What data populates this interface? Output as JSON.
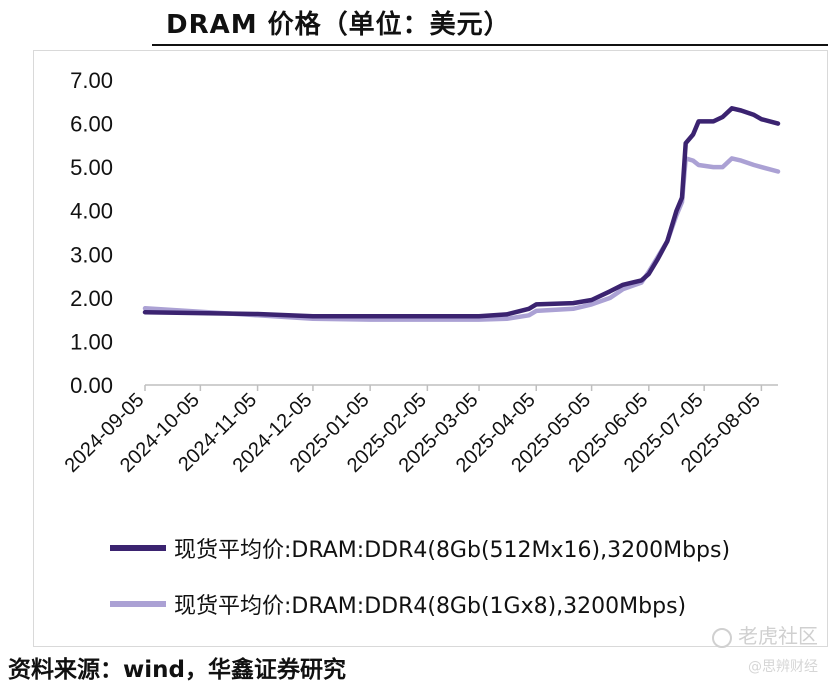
{
  "title": "DRAM 价格（单位：美元）",
  "source": "资料来源：wind，华鑫证券研究",
  "watermark": {
    "main": "老虎社区",
    "sub": "@思辨财经",
    "icon": "tiger-community-icon"
  },
  "chart_data": {
    "type": "line",
    "ylim": [
      0,
      7
    ],
    "yticks": [
      "0.00",
      "1.00",
      "2.00",
      "3.00",
      "4.00",
      "5.00",
      "6.00",
      "7.00"
    ],
    "xticks": [
      "2024-09-05",
      "2024-10-05",
      "2024-11-05",
      "2024-12-05",
      "2025-01-05",
      "2025-02-05",
      "2025-03-05",
      "2025-04-05",
      "2025-05-05",
      "2025-06-05",
      "2025-07-05",
      "2025-08-05"
    ],
    "grid": false,
    "legend_position": "bottom",
    "series": [
      {
        "name": "现货平均价:DRAM:DDR4(8Gb(512Mx16),3200Mbps)",
        "color": "#3b2370",
        "points": [
          [
            "2024-09-05",
            1.67
          ],
          [
            "2024-10-05",
            1.65
          ],
          [
            "2024-11-05",
            1.63
          ],
          [
            "2024-12-05",
            1.58
          ],
          [
            "2025-01-05",
            1.58
          ],
          [
            "2025-02-05",
            1.58
          ],
          [
            "2025-03-05",
            1.58
          ],
          [
            "2025-03-20",
            1.62
          ],
          [
            "2025-04-01",
            1.75
          ],
          [
            "2025-04-05",
            1.85
          ],
          [
            "2025-04-25",
            1.88
          ],
          [
            "2025-05-05",
            1.95
          ],
          [
            "2025-05-15",
            2.15
          ],
          [
            "2025-05-22",
            2.3
          ],
          [
            "2025-06-01",
            2.4
          ],
          [
            "2025-06-05",
            2.55
          ],
          [
            "2025-06-10",
            2.9
          ],
          [
            "2025-06-15",
            3.3
          ],
          [
            "2025-06-20",
            4.0
          ],
          [
            "2025-06-23",
            4.3
          ],
          [
            "2025-06-25",
            5.55
          ],
          [
            "2025-06-29",
            5.75
          ],
          [
            "2025-07-02",
            6.05
          ],
          [
            "2025-07-10",
            6.05
          ],
          [
            "2025-07-15",
            6.15
          ],
          [
            "2025-07-20",
            6.35
          ],
          [
            "2025-07-25",
            6.3
          ],
          [
            "2025-08-01",
            6.2
          ],
          [
            "2025-08-05",
            6.1
          ],
          [
            "2025-08-14",
            6.0
          ]
        ]
      },
      {
        "name": "现货平均价:DRAM:DDR4(8Gb(1Gx8),3200Mbps)",
        "color": "#aba1d4",
        "points": [
          [
            "2024-09-05",
            1.76
          ],
          [
            "2024-10-05",
            1.68
          ],
          [
            "2024-11-05",
            1.6
          ],
          [
            "2024-12-05",
            1.52
          ],
          [
            "2025-01-05",
            1.5
          ],
          [
            "2025-02-05",
            1.5
          ],
          [
            "2025-03-05",
            1.5
          ],
          [
            "2025-03-20",
            1.52
          ],
          [
            "2025-04-01",
            1.6
          ],
          [
            "2025-04-05",
            1.7
          ],
          [
            "2025-04-25",
            1.75
          ],
          [
            "2025-05-05",
            1.85
          ],
          [
            "2025-05-15",
            2.0
          ],
          [
            "2025-05-22",
            2.2
          ],
          [
            "2025-06-01",
            2.35
          ],
          [
            "2025-06-05",
            2.6
          ],
          [
            "2025-06-10",
            2.95
          ],
          [
            "2025-06-15",
            3.3
          ],
          [
            "2025-06-20",
            3.9
          ],
          [
            "2025-06-23",
            4.2
          ],
          [
            "2025-06-25",
            5.2
          ],
          [
            "2025-06-29",
            5.15
          ],
          [
            "2025-07-02",
            5.05
          ],
          [
            "2025-07-10",
            5.0
          ],
          [
            "2025-07-15",
            5.0
          ],
          [
            "2025-07-20",
            5.2
          ],
          [
            "2025-07-25",
            5.15
          ],
          [
            "2025-08-01",
            5.05
          ],
          [
            "2025-08-05",
            5.0
          ],
          [
            "2025-08-14",
            4.9
          ]
        ]
      }
    ]
  }
}
